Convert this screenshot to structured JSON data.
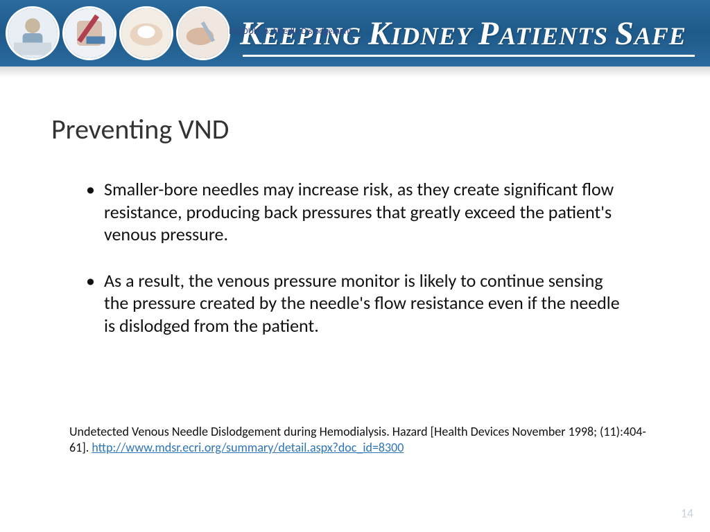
{
  "banner": {
    "background_color": "#2b6a9e",
    "title_html": "<span class='cap'>K</span>EEPING <span class='cap'>K</span>IDNEY <span class='cap'>P</span>ATIENTS <span class='cap'>S</span>AFE",
    "module_label": "MODULE 6: Needle Dislodgement",
    "circle_count": 4
  },
  "slide": {
    "title": "Preventing VND",
    "bullets": [
      "Smaller-bore needles may increase risk, as they create significant flow resistance, producing back pressures that greatly exceed the patient's venous pressure.",
      "As a result, the venous pressure monitor is likely to continue sensing the pressure created by the needle's flow resistance even if the needle is dislodged from the patient."
    ],
    "citation_text": "Undetected Venous Needle Dislodgement during Hemodialysis. Hazard [Health Devices November 1998; (11):404-61]. ",
    "citation_link_text": "http://www.mdsr.ecri.org/summary/detail.aspx?doc_id=8300",
    "citation_link_href": "http://www.mdsr.ecri.org/summary/detail.aspx?doc_id=8300",
    "page_number": "14"
  },
  "colors": {
    "link": "#2e75b6",
    "page_num": "#c8d4e0",
    "text": "#111111"
  }
}
